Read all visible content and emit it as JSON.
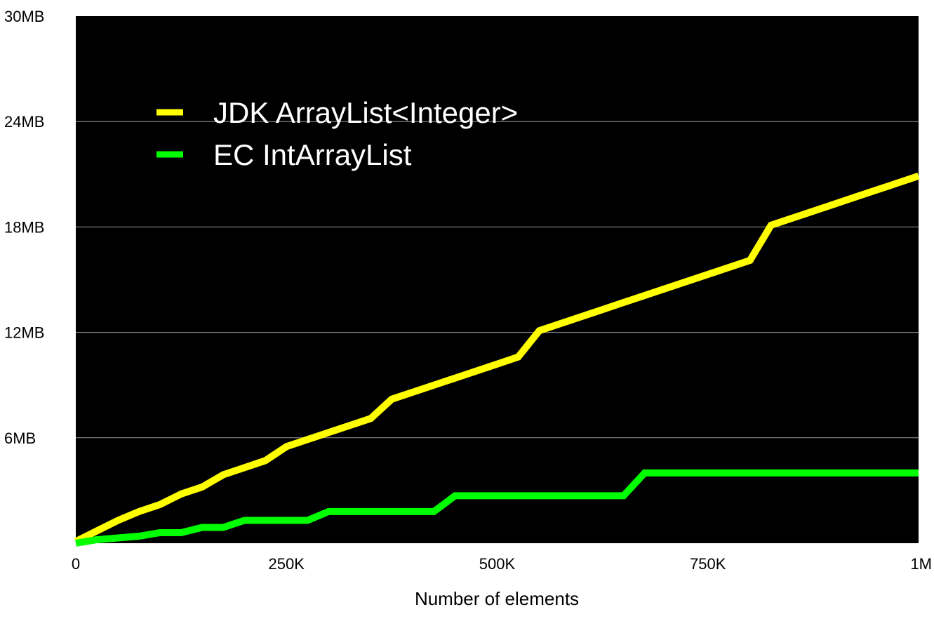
{
  "chart_data": {
    "type": "line",
    "title": "",
    "xlabel": "Number of elements",
    "ylabel": "",
    "xlim": [
      0,
      1000000
    ],
    "ylim": [
      0,
      30
    ],
    "x_ticks": [
      0,
      250000,
      500000,
      750000,
      1000000
    ],
    "x_tick_labels": [
      "0",
      "250K",
      "500K",
      "750K",
      "1M"
    ],
    "y_ticks": [
      0,
      6,
      12,
      18,
      24,
      30
    ],
    "y_tick_labels": [
      "",
      "6MB",
      "12MB",
      "18MB",
      "24MB",
      "30MB"
    ],
    "y_unit": "MB",
    "grid": true,
    "legend_position": "top-left",
    "plot_background": "#000000",
    "grid_color": "#9a9a9a",
    "series": [
      {
        "name": "JDK ArrayList<Integer>",
        "color": "#ffff00",
        "points": [
          [
            0,
            0.1
          ],
          [
            25000,
            0.7
          ],
          [
            50000,
            1.3
          ],
          [
            75000,
            1.8
          ],
          [
            100000,
            2.2
          ],
          [
            125000,
            2.8
          ],
          [
            150000,
            3.2
          ],
          [
            175000,
            3.9
          ],
          [
            200000,
            4.3
          ],
          [
            225000,
            4.7
          ],
          [
            250000,
            5.5
          ],
          [
            275000,
            5.9
          ],
          [
            300000,
            6.3
          ],
          [
            325000,
            6.7
          ],
          [
            350000,
            7.1
          ],
          [
            375000,
            8.2
          ],
          [
            400000,
            8.6
          ],
          [
            425000,
            9.0
          ],
          [
            450000,
            9.4
          ],
          [
            475000,
            9.8
          ],
          [
            500000,
            10.2
          ],
          [
            525000,
            10.6
          ],
          [
            550000,
            12.1
          ],
          [
            575000,
            12.5
          ],
          [
            600000,
            12.9
          ],
          [
            625000,
            13.3
          ],
          [
            650000,
            13.7
          ],
          [
            675000,
            14.1
          ],
          [
            700000,
            14.5
          ],
          [
            725000,
            14.9
          ],
          [
            750000,
            15.3
          ],
          [
            775000,
            15.7
          ],
          [
            800000,
            16.1
          ],
          [
            825000,
            18.1
          ],
          [
            850000,
            18.5
          ],
          [
            875000,
            18.9
          ],
          [
            900000,
            19.3
          ],
          [
            925000,
            19.7
          ],
          [
            950000,
            20.1
          ],
          [
            975000,
            20.5
          ],
          [
            1000000,
            20.9
          ]
        ]
      },
      {
        "name": "EC IntArrayList",
        "color": "#00ff00",
        "points": [
          [
            0,
            0.0
          ],
          [
            25000,
            0.2
          ],
          [
            50000,
            0.3
          ],
          [
            75000,
            0.4
          ],
          [
            100000,
            0.6
          ],
          [
            125000,
            0.6
          ],
          [
            150000,
            0.9
          ],
          [
            175000,
            0.9
          ],
          [
            200000,
            1.3
          ],
          [
            275000,
            1.3
          ],
          [
            300000,
            1.8
          ],
          [
            425000,
            1.8
          ],
          [
            450000,
            2.7
          ],
          [
            650000,
            2.7
          ],
          [
            675000,
            4.0
          ],
          [
            1000000,
            4.0
          ]
        ]
      }
    ]
  }
}
